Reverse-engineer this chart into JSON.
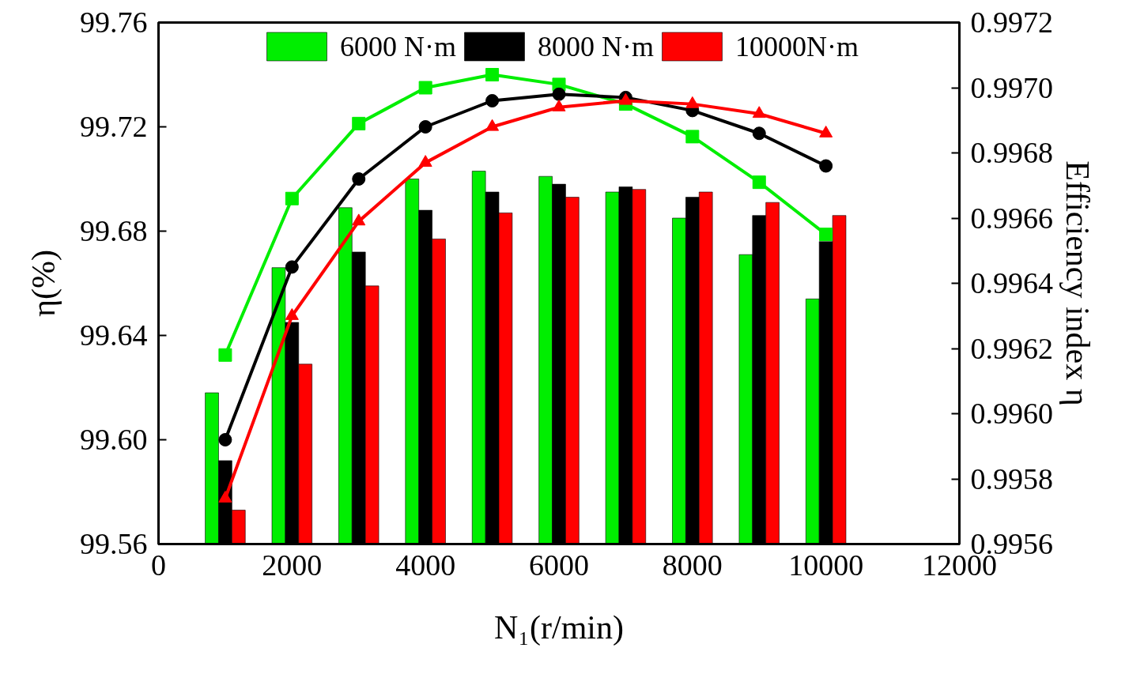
{
  "chart_data": {
    "type": "bar",
    "xlabel": "N₁(r/min)",
    "ylabel": "η(%)",
    "y2label": "Efficiency index η",
    "x": [
      1000,
      2000,
      3000,
      4000,
      5000,
      6000,
      7000,
      8000,
      9000,
      10000
    ],
    "xlim": [
      0,
      12000
    ],
    "xticks": [
      0,
      2000,
      4000,
      6000,
      8000,
      10000,
      12000
    ],
    "ylim": [
      99.56,
      99.76
    ],
    "yticks": [
      {
        "value": 99.56,
        "label": "99.56"
      },
      {
        "value": 99.6,
        "label": "99.60"
      },
      {
        "value": 99.64,
        "label": "99.64"
      },
      {
        "value": 99.68,
        "label": "99.68"
      },
      {
        "value": 99.72,
        "label": "99.72"
      },
      {
        "value": 99.76,
        "label": "99.76"
      }
    ],
    "y2lim": [
      0.9956,
      0.9972
    ],
    "y2ticks": [
      {
        "value": 0.9956,
        "label": "0.9956"
      },
      {
        "value": 0.9958,
        "label": "0.9958"
      },
      {
        "value": 0.996,
        "label": "0.9960"
      },
      {
        "value": 0.9962,
        "label": "0.9962"
      },
      {
        "value": 0.9964,
        "label": "0.9964"
      },
      {
        "value": 0.9966,
        "label": "0.9966"
      },
      {
        "value": 0.9968,
        "label": "0.9968"
      },
      {
        "value": 0.997,
        "label": "0.9970"
      },
      {
        "value": 0.9972,
        "label": "0.9972"
      }
    ],
    "grid": false,
    "legend": "top",
    "series": [
      {
        "name": "6000 N·m",
        "color": "#00ee00",
        "values": [
          99.618,
          99.666,
          99.689,
          99.7,
          99.703,
          99.701,
          99.695,
          99.685,
          99.671,
          99.654
        ]
      },
      {
        "name": "8000 N·m",
        "color": "#000000",
        "values": [
          99.592,
          99.645,
          99.672,
          99.688,
          99.695,
          99.698,
          99.697,
          99.693,
          99.686,
          99.676
        ]
      },
      {
        "name": "10000N·m",
        "color": "#ff0000",
        "values": [
          99.573,
          99.629,
          99.659,
          99.677,
          99.687,
          99.693,
          99.696,
          99.695,
          99.691,
          99.686
        ]
      },
      {
        "type": "line",
        "axis": "y2",
        "marker": "square",
        "color": "#00ee00",
        "values": [
          0.99618,
          0.99666,
          0.99689,
          0.997,
          0.99704,
          0.99701,
          0.99695,
          0.99685,
          0.99671,
          0.99655
        ]
      },
      {
        "type": "line",
        "axis": "y2",
        "marker": "circle",
        "color": "#000000",
        "values": [
          0.99592,
          0.99645,
          0.99672,
          0.99688,
          0.99696,
          0.99698,
          0.99697,
          0.99693,
          0.99686,
          0.99676
        ]
      },
      {
        "type": "line",
        "axis": "y2",
        "marker": "triangle",
        "color": "#ff0000",
        "values": [
          0.99574,
          0.9963,
          0.99659,
          0.99677,
          0.99688,
          0.99694,
          0.99696,
          0.99695,
          0.99692,
          0.99686
        ]
      }
    ]
  }
}
